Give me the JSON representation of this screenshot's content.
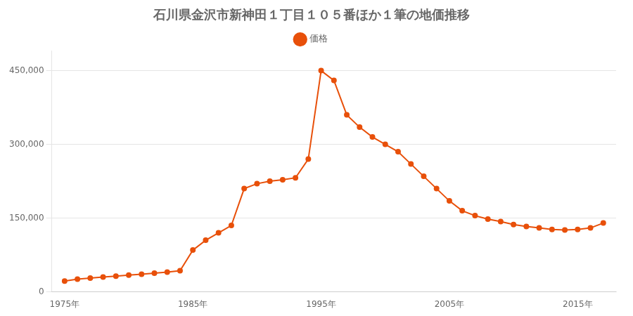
{
  "chart_data": {
    "type": "line",
    "title": "石川県金沢市新神田１丁目１０５番ほか１筆の地価推移",
    "x": [
      1975,
      1976,
      1977,
      1978,
      1979,
      1980,
      1981,
      1982,
      1983,
      1984,
      1985,
      1986,
      1987,
      1988,
      1989,
      1990,
      1991,
      1992,
      1993,
      1994,
      1995,
      1996,
      1997,
      1998,
      1999,
      2000,
      2001,
      2002,
      2003,
      2004,
      2005,
      2006,
      2007,
      2008,
      2009,
      2010,
      2011,
      2012,
      2013,
      2014,
      2015,
      2016,
      2017
    ],
    "series": [
      {
        "name": "価格",
        "color": "#e8500a",
        "marker": "circle",
        "line_style": "solid",
        "values": [
          22000,
          26000,
          28000,
          30000,
          32000,
          34000,
          36000,
          38000,
          40000,
          43000,
          85000,
          105000,
          120000,
          135000,
          210000,
          220000,
          225000,
          228000,
          232000,
          270000,
          450000,
          430000,
          360000,
          335000,
          315000,
          300000,
          285000,
          260000,
          235000,
          210000,
          185000,
          165000,
          155000,
          148000,
          143000,
          137000,
          133000,
          130000,
          127000,
          126000,
          127000,
          130000,
          140000
        ]
      }
    ],
    "xlim": [
      1974,
      2018
    ],
    "xticks": [
      {
        "value": 1975,
        "label": "1975年"
      },
      {
        "value": 1985,
        "label": "1985年"
      },
      {
        "value": 1995,
        "label": "1995年"
      },
      {
        "value": 2005,
        "label": "2005年"
      },
      {
        "value": 2015,
        "label": "2015年"
      }
    ],
    "ylim": [
      0,
      490000
    ],
    "yticks": [
      0,
      {
        "value": 150000,
        "label": "150,000"
      },
      {
        "value": 300000,
        "label": "300,000"
      },
      {
        "value": 450000,
        "label": "450,000"
      }
    ],
    "grid": "y",
    "legend": "top"
  }
}
